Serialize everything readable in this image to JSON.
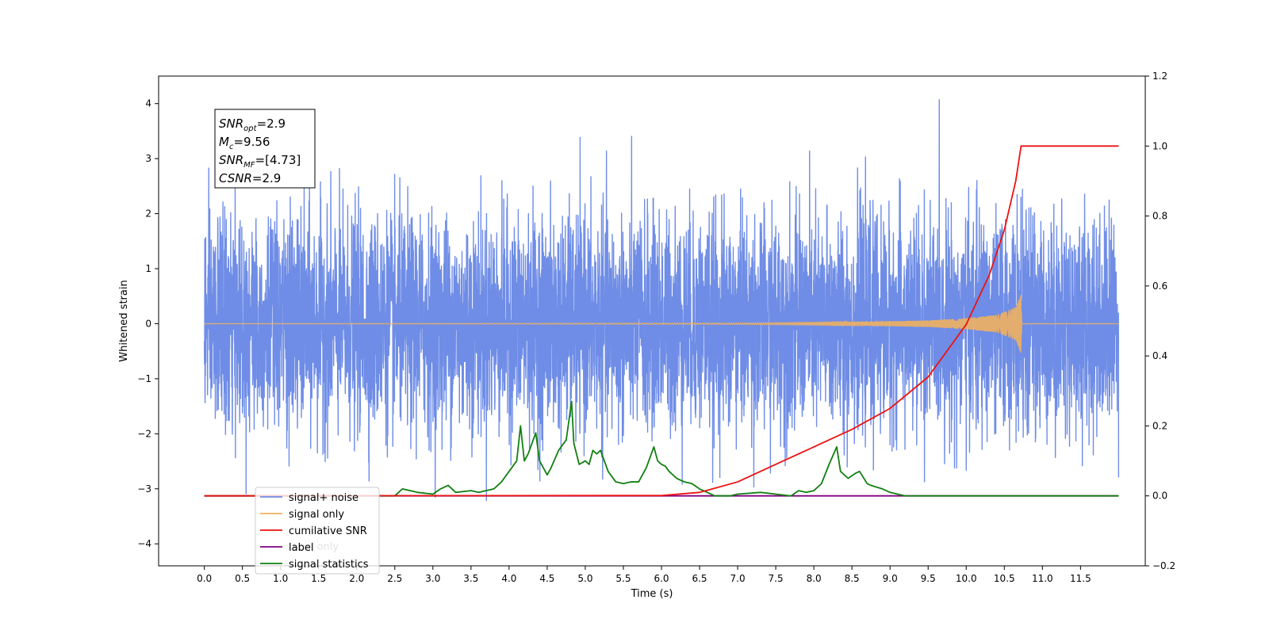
{
  "chart_data": {
    "type": "line",
    "xlabel": "Time (s)",
    "ylabel": "Whitened strain",
    "xlim": [
      -0.6,
      12.35
    ],
    "ylim": [
      -4.4,
      4.5
    ],
    "ylim_right": [
      -0.2,
      1.2
    ],
    "x_ticks": [
      "0.0",
      "0.5",
      "1.0",
      "1.5",
      "2.0",
      "2.5",
      "3.0",
      "3.5",
      "4.0",
      "4.5",
      "5.0",
      "5.5",
      "6.0",
      "6.5",
      "7.0",
      "7.5",
      "8.0",
      "8.5",
      "9.0",
      "9.5",
      "10.0",
      "10.5",
      "11.0",
      "11.5"
    ],
    "y_ticks_left": [
      "−4",
      "−3",
      "−2",
      "−1",
      "0",
      "1",
      "2",
      "3",
      "4"
    ],
    "y_ticks_right": [
      "−0.2",
      "0.0",
      "0.2",
      "0.4",
      "0.6",
      "0.8",
      "1.0",
      "1.2"
    ],
    "grid": false,
    "legend_position": "lower-left",
    "legend": [
      "signal+ noise",
      "signal only",
      "cumilative SNR",
      "label",
      "signal statistics"
    ],
    "legend_overlap_text": "label only",
    "annotation": {
      "lines": [
        {
          "label": "SNR",
          "sub": "opt",
          "value": "=2.9"
        },
        {
          "label": "M",
          "sub": "c",
          "value": "=9.56"
        },
        {
          "label": "SNR",
          "sub": "MF",
          "value": "=[4.73]"
        },
        {
          "label": "CSNR",
          "sub": "",
          "value": "=2.9"
        }
      ]
    },
    "colors": {
      "signal_noise": "#6f8de6",
      "signal_only": "#f0b060",
      "cumulative_snr": "#ee1111",
      "label": "#800080",
      "signal_statistics": "#118011"
    },
    "series": [
      {
        "name": "signal+ noise",
        "axis": "left",
        "description": "noise samples from 0.0 to 12.0 s, amplitude mostly within about ±2.5, extremes near 4.1 and -4.0",
        "x_range": [
          0.0,
          12.0
        ],
        "envelope": [
          -2.6,
          2.6
        ],
        "extremes": {
          "max": 4.1,
          "min": -4.0
        }
      },
      {
        "name": "signal only",
        "axis": "left",
        "description": "chirp that grows toward merger at about 10.72 s then stops",
        "x_range": [
          0.0,
          12.0
        ],
        "envelope_points": {
          "x": [
            0.0,
            7.0,
            8.5,
            9.5,
            10.0,
            10.4,
            10.65,
            10.72,
            10.73,
            12.0
          ],
          "y": [
            0.0,
            0.015,
            0.03,
            0.06,
            0.1,
            0.16,
            0.3,
            0.55,
            0.0,
            0.0
          ]
        }
      },
      {
        "name": "cumilative SNR",
        "axis": "right",
        "x": [
          0.0,
          6.0,
          6.5,
          7.0,
          7.5,
          8.0,
          8.5,
          9.0,
          9.5,
          10.0,
          10.3,
          10.5,
          10.65,
          10.72,
          10.73,
          12.0
        ],
        "y": [
          0.0,
          0.001,
          0.01,
          0.04,
          0.09,
          0.14,
          0.19,
          0.25,
          0.34,
          0.49,
          0.63,
          0.76,
          0.9,
          1.0,
          1.0,
          1.0
        ]
      },
      {
        "name": "label",
        "axis": "right",
        "x": [
          0.0,
          12.0
        ],
        "y": [
          0.0,
          0.0
        ]
      },
      {
        "name": "signal statistics",
        "axis": "right",
        "x": [
          0.0,
          2.5,
          2.6,
          2.8,
          3.0,
          3.1,
          3.2,
          3.3,
          3.5,
          3.6,
          3.8,
          3.9,
          4.0,
          4.1,
          4.15,
          4.2,
          4.25,
          4.35,
          4.4,
          4.5,
          4.55,
          4.65,
          4.75,
          4.82,
          4.85,
          4.92,
          5.0,
          5.05,
          5.1,
          5.15,
          5.2,
          5.3,
          5.4,
          5.5,
          5.6,
          5.7,
          5.8,
          5.9,
          5.95,
          6.0,
          6.05,
          6.1,
          6.2,
          6.3,
          6.4,
          6.5,
          6.6,
          6.7,
          6.9,
          7.0,
          7.3,
          7.5,
          7.7,
          7.8,
          7.9,
          8.0,
          8.1,
          8.2,
          8.3,
          8.35,
          8.45,
          8.55,
          8.6,
          8.7,
          8.75,
          8.9,
          9.0,
          9.2,
          9.5,
          12.0
        ],
        "y": [
          0.0,
          0.0,
          0.02,
          0.01,
          0.005,
          0.02,
          0.03,
          0.01,
          0.015,
          0.01,
          0.02,
          0.04,
          0.07,
          0.1,
          0.2,
          0.1,
          0.12,
          0.18,
          0.1,
          0.06,
          0.08,
          0.13,
          0.16,
          0.27,
          0.15,
          0.09,
          0.1,
          0.09,
          0.13,
          0.12,
          0.13,
          0.07,
          0.04,
          0.035,
          0.04,
          0.04,
          0.08,
          0.14,
          0.1,
          0.09,
          0.085,
          0.07,
          0.05,
          0.04,
          0.035,
          0.02,
          0.01,
          0.0,
          0.0,
          0.005,
          0.01,
          0.005,
          0.0,
          0.015,
          0.01,
          0.015,
          0.035,
          0.09,
          0.14,
          0.07,
          0.05,
          0.065,
          0.07,
          0.035,
          0.03,
          0.02,
          0.01,
          0.0,
          0.0,
          0.0
        ]
      }
    ]
  }
}
